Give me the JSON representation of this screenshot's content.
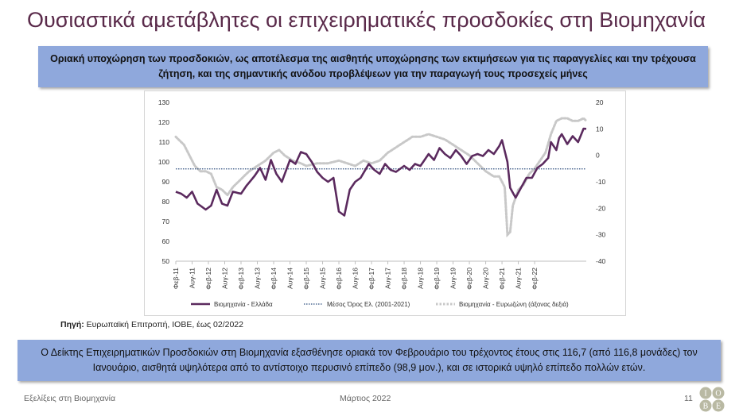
{
  "slide": {
    "title": "Ουσιαστικά αμετάβλητες οι επιχειρηματικές προσδοκίες στη Βιομηχανία",
    "banner_top": "Οριακή υποχώρηση των προσδοκιών, ως αποτέλεσμα της αισθητής υποχώρησης των εκτιμήσεων για τις παραγγελίες και την τρέχουσα ζήτηση, και της σημαντικής ανόδου προβλέψεων για την παραγωγή τους προσεχείς μήνες",
    "source_label": "Πηγή:",
    "source_text": " Ευρωπαϊκή Επιτροπή, ΙΟΒΕ, έως 02/2022",
    "banner_bottom": "Ο Δείκτης Επιχειρηματικών Προσδοκιών στη Βιομηχανία εξασθένησε οριακά τον Φεβρουάριο του τρέχοντος έτους στις 116,7 (από 116,8 μονάδες) τον Ιανουάριο, αισθητά υψηλότερα από το αντίστοιχο περυσινό επίπεδο (98,9 μον.), και σε ιστορικά υψηλό επίπεδο πολλών ετών.",
    "footer_left": "Εξελίξεις στη Βιομηχανία",
    "footer_center": "Μάρτιος 2022",
    "page_number": "11",
    "logo_letters": [
      "Ι",
      "Ο",
      "Β",
      "Ε"
    ]
  },
  "colors": {
    "title": "#5a2a4a",
    "banner": "#8fa8dc",
    "greece": "#5b2a5e",
    "mean": "#2f4f7f",
    "eurozone": "#c8c8c8"
  },
  "chart_data": {
    "type": "line",
    "x_ticks": [
      "Φεβ-11",
      "Αυγ-11",
      "Φεβ-12",
      "Αυγ-12",
      "Φεβ-13",
      "Αυγ-13",
      "Φεβ-14",
      "Αυγ-14",
      "Φεβ-15",
      "Αυγ-15",
      "Φεβ-16",
      "Αυγ-16",
      "Φεβ-17",
      "Αυγ-17",
      "Φεβ-18",
      "Αυγ-18",
      "Φεβ-19",
      "Αυγ-19",
      "Φεβ-20",
      "Αυγ-20",
      "Φεβ-21",
      "Αυγ-21",
      "Φεβ-22"
    ],
    "y_left": {
      "min": 50,
      "max": 130,
      "ticks": [
        50,
        60,
        70,
        80,
        90,
        100,
        110,
        120,
        130
      ]
    },
    "y_right": {
      "min": -40,
      "max": 20,
      "ticks": [
        -40,
        -30,
        -20,
        -10,
        0,
        10,
        20
      ]
    },
    "legend_position": "bottom",
    "series": [
      {
        "name": "Βιομηχανία - Ελλάδα",
        "axis": "left",
        "style": "solid",
        "anchors": [
          [
            0,
            85
          ],
          [
            2,
            84
          ],
          [
            4,
            82
          ],
          [
            6,
            85
          ],
          [
            8,
            79
          ],
          [
            11,
            76
          ],
          [
            13,
            78
          ],
          [
            15,
            86
          ],
          [
            17,
            79
          ],
          [
            19,
            78
          ],
          [
            21,
            85
          ],
          [
            24,
            84
          ],
          [
            26,
            88
          ],
          [
            29,
            93
          ],
          [
            31,
            97
          ],
          [
            33,
            91
          ],
          [
            35,
            101
          ],
          [
            37,
            94
          ],
          [
            39,
            90
          ],
          [
            42,
            101
          ],
          [
            44,
            99
          ],
          [
            46,
            105
          ],
          [
            48,
            104
          ],
          [
            50,
            100
          ],
          [
            52,
            95
          ],
          [
            54,
            92
          ],
          [
            56,
            90
          ],
          [
            58,
            92
          ],
          [
            60,
            75
          ],
          [
            62,
            73
          ],
          [
            64,
            86
          ],
          [
            66,
            90
          ],
          [
            68,
            92
          ],
          [
            71,
            99
          ],
          [
            73,
            96
          ],
          [
            75,
            94
          ],
          [
            77,
            99
          ],
          [
            79,
            96
          ],
          [
            81,
            95
          ],
          [
            84,
            98
          ],
          [
            86,
            96
          ],
          [
            88,
            99
          ],
          [
            90,
            98
          ],
          [
            93,
            104
          ],
          [
            95,
            101
          ],
          [
            97,
            107
          ],
          [
            99,
            104
          ],
          [
            101,
            102
          ],
          [
            103,
            106
          ],
          [
            105,
            103
          ],
          [
            107,
            99
          ],
          [
            109,
            103
          ],
          [
            111,
            104
          ],
          [
            113,
            103
          ],
          [
            115,
            106
          ],
          [
            117,
            104
          ],
          [
            119,
            108
          ],
          [
            120,
            111
          ],
          [
            122,
            100
          ],
          [
            123,
            87
          ],
          [
            125,
            82
          ],
          [
            127,
            87
          ],
          [
            129,
            92
          ],
          [
            131,
            92
          ],
          [
            133,
            97
          ],
          [
            135,
            99
          ],
          [
            137,
            102
          ],
          [
            138,
            110
          ],
          [
            140,
            106
          ],
          [
            141,
            112
          ],
          [
            142,
            114
          ],
          [
            144,
            109
          ],
          [
            146,
            113
          ],
          [
            148,
            110
          ],
          [
            150,
            116.8
          ],
          [
            151,
            116.7
          ]
        ]
      },
      {
        "name": "Μέσος Όρος Ελ. (2001-2021)",
        "axis": "left",
        "style": "dotted",
        "value": 96.5
      },
      {
        "name": "Βιομηχανία - Ευρωζώνη (άξονας δεξιά)",
        "axis": "right",
        "style": "dashed",
        "anchors": [
          [
            0,
            7
          ],
          [
            3,
            4
          ],
          [
            5,
            0
          ],
          [
            7,
            -4
          ],
          [
            9,
            -6
          ],
          [
            11,
            -6
          ],
          [
            13,
            -7
          ],
          [
            15,
            -12
          ],
          [
            17,
            -13
          ],
          [
            19,
            -15
          ],
          [
            21,
            -12
          ],
          [
            24,
            -9
          ],
          [
            27,
            -6
          ],
          [
            30,
            -4
          ],
          [
            33,
            -2
          ],
          [
            36,
            1
          ],
          [
            38,
            2
          ],
          [
            40,
            0
          ],
          [
            43,
            -2
          ],
          [
            46,
            -3
          ],
          [
            48,
            -4
          ],
          [
            52,
            -3
          ],
          [
            56,
            -3
          ],
          [
            60,
            -2
          ],
          [
            63,
            -3
          ],
          [
            66,
            -4
          ],
          [
            69,
            -2
          ],
          [
            72,
            -3
          ],
          [
            75,
            -2
          ],
          [
            78,
            1
          ],
          [
            81,
            3
          ],
          [
            84,
            5
          ],
          [
            87,
            7
          ],
          [
            90,
            7
          ],
          [
            93,
            8
          ],
          [
            96,
            7
          ],
          [
            99,
            6
          ],
          [
            102,
            4
          ],
          [
            105,
            2
          ],
          [
            108,
            0
          ],
          [
            111,
            -3
          ],
          [
            114,
            -6
          ],
          [
            117,
            -8
          ],
          [
            119,
            -8
          ],
          [
            121,
            -12
          ],
          [
            122,
            -30
          ],
          [
            123,
            -29
          ],
          [
            124,
            -19
          ],
          [
            126,
            -13
          ],
          [
            128,
            -11
          ],
          [
            130,
            -7
          ],
          [
            132,
            -5
          ],
          [
            134,
            -2
          ],
          [
            136,
            1
          ],
          [
            138,
            8
          ],
          [
            140,
            13
          ],
          [
            142,
            14
          ],
          [
            144,
            14
          ],
          [
            146,
            13
          ],
          [
            148,
            13
          ],
          [
            150,
            14
          ],
          [
            151,
            13
          ]
        ]
      }
    ]
  }
}
